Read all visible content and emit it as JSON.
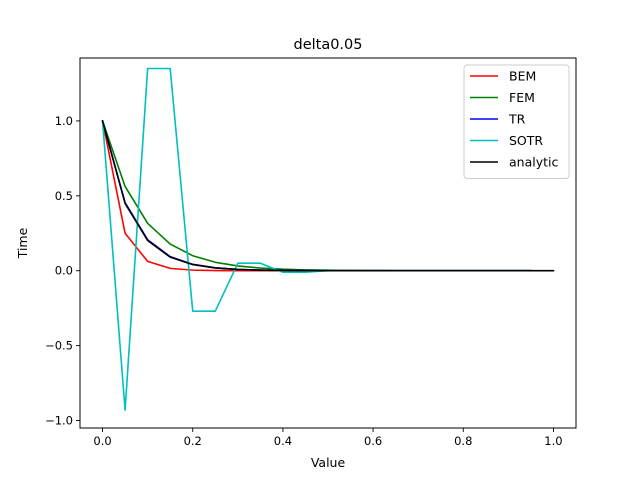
{
  "chart_data": {
    "type": "line",
    "title": "delta0.05",
    "xlabel": "Value",
    "ylabel": "Time",
    "xlim": [
      -0.05,
      1.05
    ],
    "ylim": [
      -1.05,
      1.42
    ],
    "grid": false,
    "legend_position": "upper-right",
    "xticks": [
      0.0,
      0.2,
      0.4,
      0.6,
      0.8,
      1.0
    ],
    "xtick_labels": [
      "0.0",
      "0.2",
      "0.4",
      "0.6",
      "0.8",
      "1.0"
    ],
    "yticks": [
      -1.0,
      -0.5,
      0.0,
      0.5,
      1.0
    ],
    "ytick_labels": [
      "−1.0",
      "−0.5",
      "0.0",
      "0.5",
      "1.0"
    ],
    "series": [
      {
        "name": "BEM",
        "color": "#ff0000",
        "x": [
          0.0,
          0.05,
          0.1,
          0.15,
          0.2,
          0.25,
          0.3,
          0.35,
          0.4,
          0.45,
          0.5,
          0.55,
          0.6,
          0.65,
          0.7,
          0.75,
          0.8,
          0.85,
          0.9,
          0.95
        ],
        "y": [
          1.0,
          0.25,
          0.0625,
          0.0156,
          0.0039,
          0.001,
          0.0002,
          0.0001,
          0.0,
          0.0,
          0.0,
          0.0,
          0.0,
          0.0,
          0.0,
          0.0,
          0.0,
          0.0,
          0.0,
          0.0
        ]
      },
      {
        "name": "FEM",
        "color": "#008000",
        "x": [
          0.0,
          0.05,
          0.1,
          0.15,
          0.2,
          0.25,
          0.3,
          0.35,
          0.4,
          0.45,
          0.5,
          0.55,
          0.6,
          0.65,
          0.7,
          0.75,
          0.8,
          0.85,
          0.9,
          0.95
        ],
        "y": [
          1.0,
          0.5625,
          0.3164,
          0.178,
          0.1001,
          0.0563,
          0.0317,
          0.0178,
          0.01,
          0.0056,
          0.0032,
          0.0018,
          0.001,
          0.0006,
          0.0003,
          0.0002,
          0.0001,
          0.0001,
          0.0,
          0.0
        ]
      },
      {
        "name": "TR",
        "color": "#0000ff",
        "x": [
          0.0,
          0.05,
          0.1,
          0.15,
          0.2,
          0.25,
          0.3,
          0.35,
          0.4,
          0.45,
          0.5,
          0.55,
          0.6,
          0.65,
          0.7,
          0.75,
          0.8,
          0.85,
          0.9,
          0.95
        ],
        "y": [
          1.0,
          0.4545,
          0.2066,
          0.0939,
          0.0427,
          0.0194,
          0.0088,
          0.004,
          0.0018,
          0.0008,
          0.0004,
          0.0002,
          0.0001,
          0.0,
          0.0,
          0.0,
          0.0,
          0.0,
          0.0,
          0.0
        ]
      },
      {
        "name": "SOTR",
        "color": "#00bfbf",
        "x": [
          0.0,
          0.05,
          0.1,
          0.15,
          0.2,
          0.25,
          0.3,
          0.35,
          0.4,
          0.45,
          0.5,
          0.55,
          0.6,
          0.65,
          0.7,
          0.75,
          0.8,
          0.85,
          0.9,
          0.95
        ],
        "y": [
          1.0,
          -0.93,
          1.35,
          1.35,
          -0.27,
          -0.27,
          0.05,
          0.05,
          -0.01,
          -0.01,
          0.0,
          0.0,
          0.0,
          0.0,
          0.0,
          0.0,
          0.0,
          0.0,
          0.0,
          0.0
        ]
      },
      {
        "name": "analytic",
        "color": "#000000",
        "x": [
          0.0,
          0.05,
          0.1,
          0.15,
          0.2,
          0.25,
          0.3,
          0.35,
          0.4,
          0.45,
          0.5,
          0.55,
          0.6,
          0.65,
          0.7,
          0.75,
          0.8,
          0.85,
          0.9,
          0.95,
          1.0
        ],
        "y": [
          1.0,
          0.4493,
          0.2019,
          0.0907,
          0.0408,
          0.0183,
          0.0082,
          0.0037,
          0.0017,
          0.0007,
          0.0003,
          0.0002,
          0.0001,
          0.0,
          0.0,
          0.0,
          0.0,
          0.0,
          0.0,
          0.0,
          0.0
        ]
      }
    ]
  }
}
